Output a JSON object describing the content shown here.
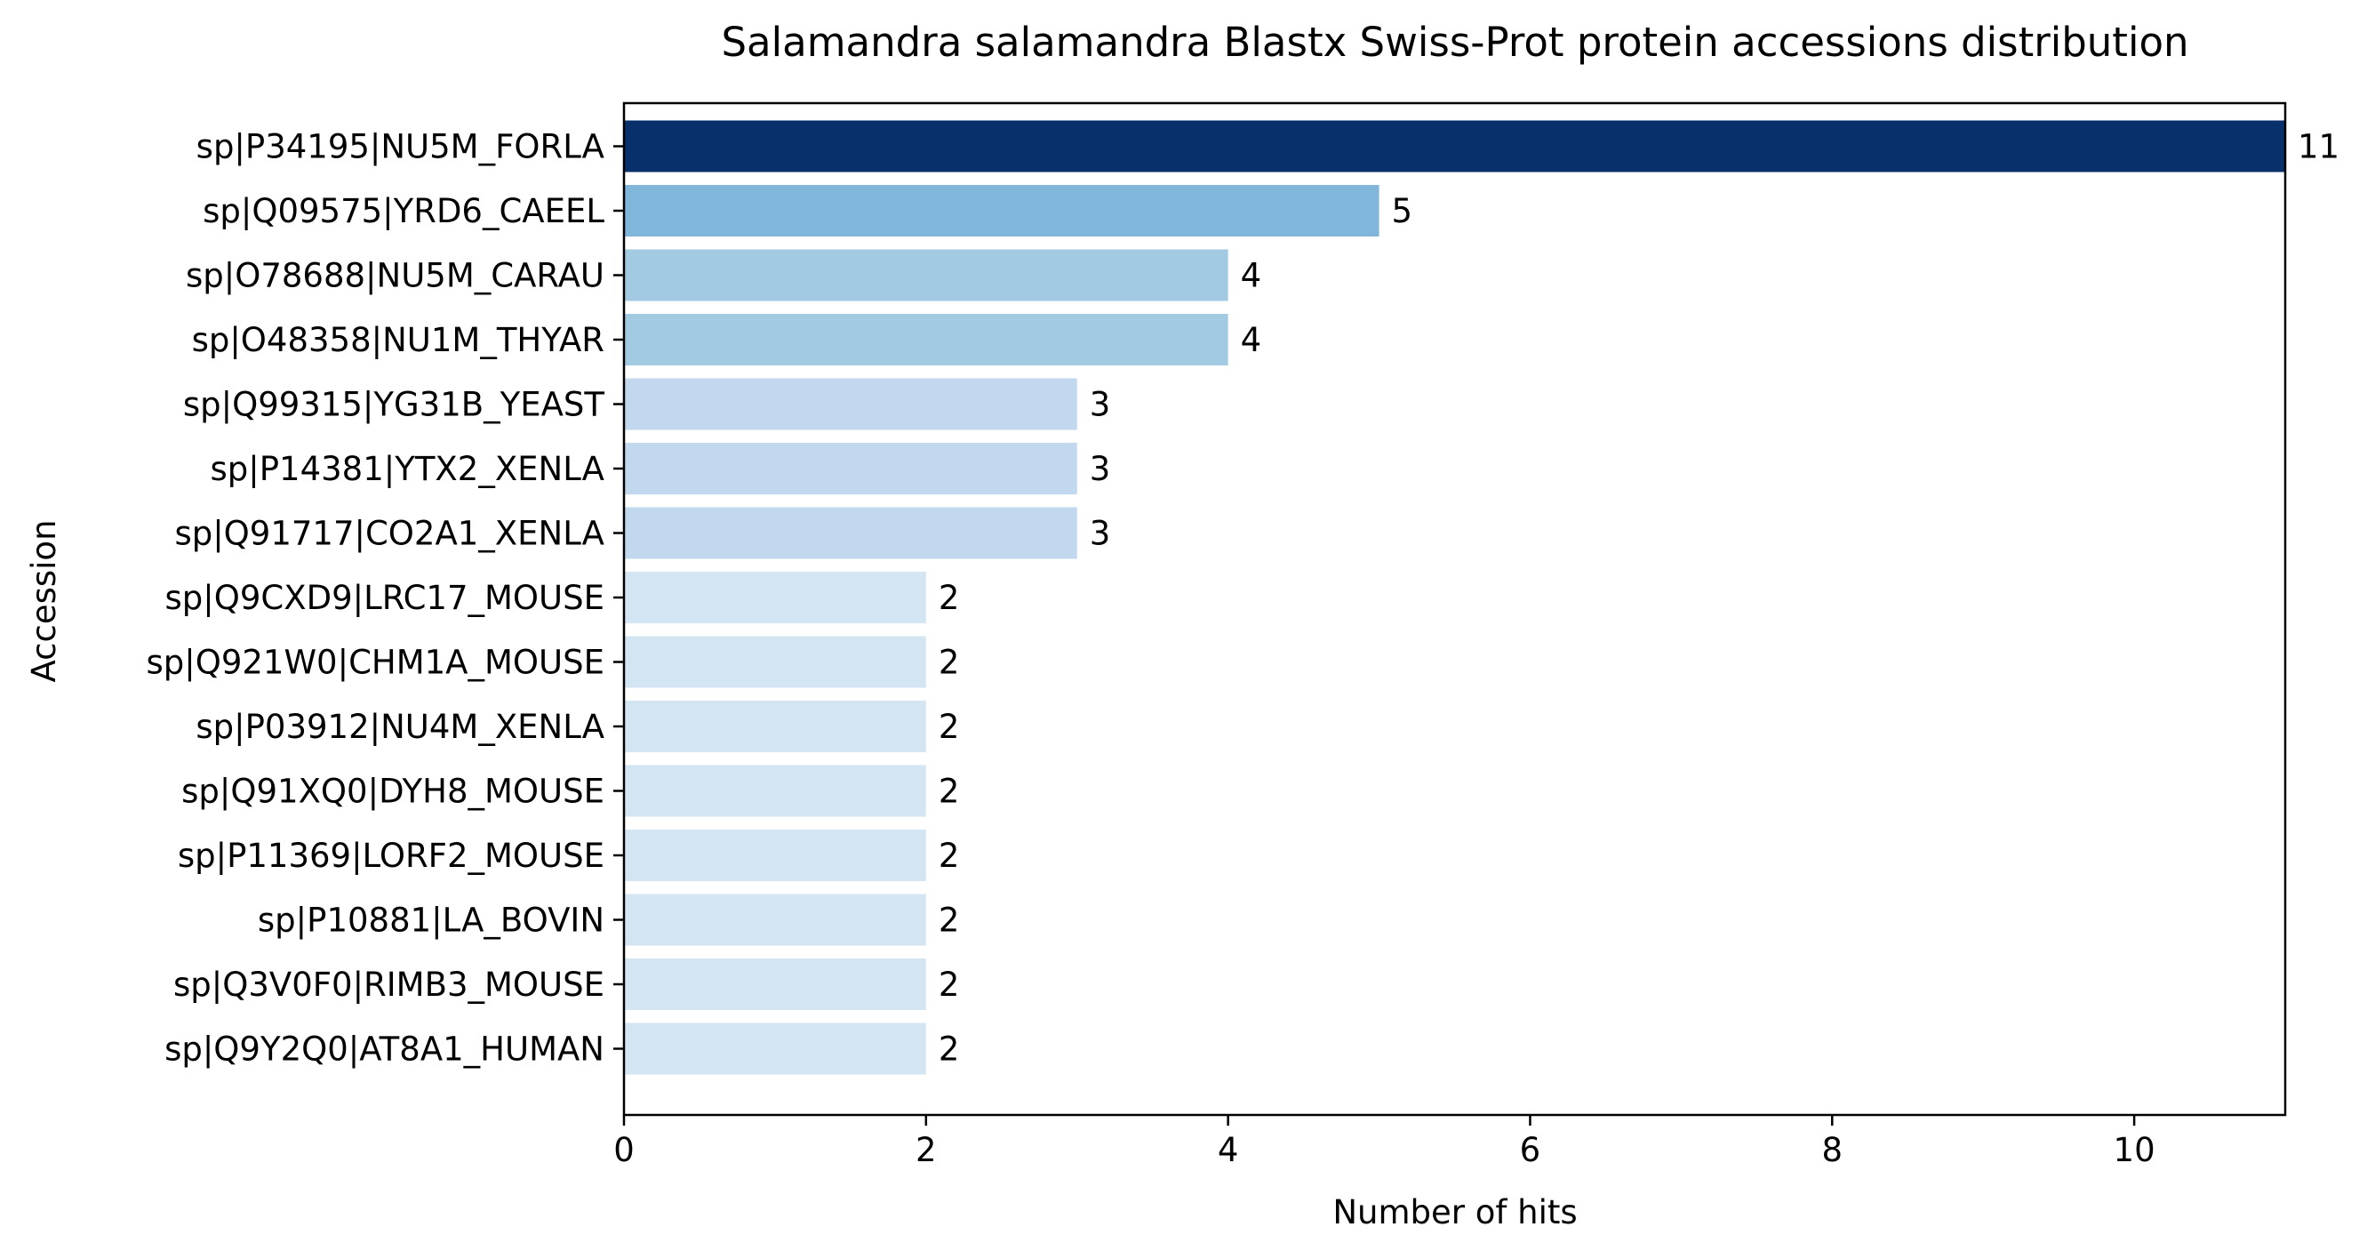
{
  "chart_data": {
    "type": "bar",
    "orientation": "horizontal",
    "title": "Salamandra salamandra Blastx Swiss-Prot protein accessions distribution",
    "xlabel": "Number of hits",
    "ylabel": "Accession",
    "xlim": [
      0,
      11
    ],
    "xticks": [
      0,
      2,
      4,
      6,
      8,
      10
    ],
    "grid": false,
    "legend": "none",
    "categories": [
      "sp|P34195|NU5M_FORLA",
      "sp|Q09575|YRD6_CAEEL",
      "sp|O78688|NU5M_CARAU",
      "sp|O48358|NU1M_THYAR",
      "sp|Q99315|YG31B_YEAST",
      "sp|P14381|YTX2_XENLA",
      "sp|Q91717|CO2A1_XENLA",
      "sp|Q9CXD9|LRC17_MOUSE",
      "sp|Q921W0|CHM1A_MOUSE",
      "sp|P03912|NU4M_XENLA",
      "sp|Q91XQ0|DYH8_MOUSE",
      "sp|P11369|LORF2_MOUSE",
      "sp|P10881|LA_BOVIN",
      "sp|Q3V0F0|RIMB3_MOUSE",
      "sp|Q9Y2Q0|AT8A1_HUMAN"
    ],
    "values": [
      11,
      5,
      4,
      4,
      3,
      3,
      3,
      2,
      2,
      2,
      2,
      2,
      2,
      2,
      2
    ],
    "colors": [
      "#08306b",
      "#7fb6da",
      "#a2cae2",
      "#a2cae2",
      "#c2d8ee",
      "#c2d8ee",
      "#c2d8ee",
      "#d3e5f3",
      "#d3e5f3",
      "#d3e5f3",
      "#d3e5f3",
      "#d3e5f3",
      "#d3e5f3",
      "#d3e5f3",
      "#d3e5f3"
    ]
  }
}
